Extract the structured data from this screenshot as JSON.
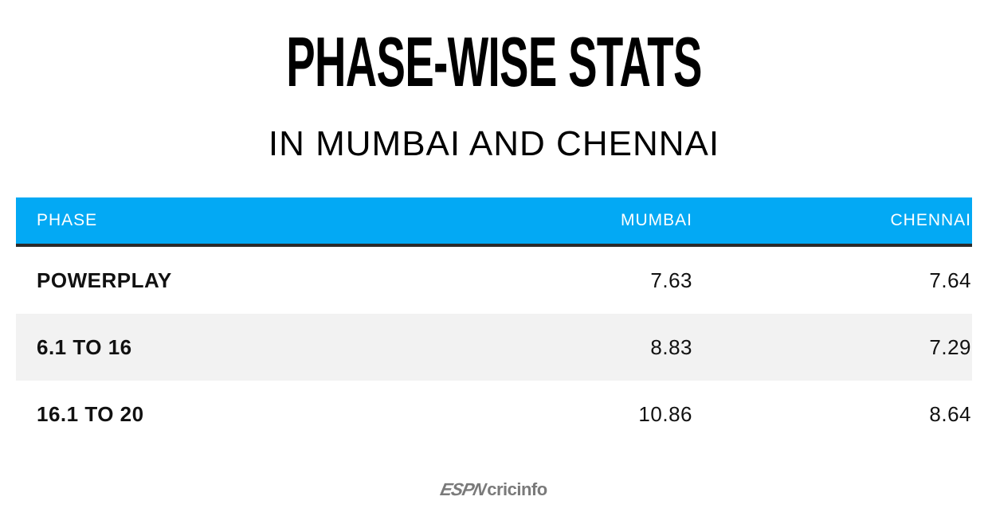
{
  "header": {
    "title": "PHASE-WISE STATS",
    "subtitle": "IN MUMBAI AND CHENNAI"
  },
  "table": {
    "columns": [
      "PHASE",
      "MUMBAI",
      "CHENNAI"
    ],
    "rows": [
      {
        "phase": "POWERPLAY",
        "mumbai": "7.63",
        "chennai": "7.64"
      },
      {
        "phase": "6.1 TO 16",
        "mumbai": "8.83",
        "chennai": "7.29"
      },
      {
        "phase": "16.1 TO 20",
        "mumbai": "10.86",
        "chennai": "8.64"
      }
    ]
  },
  "footer": {
    "logo_espn": "ESPN",
    "logo_cricinfo": "cricinfo"
  },
  "colors": {
    "header_bg": "#03a9f4",
    "header_rule": "#2b2b2b",
    "alt_row_bg": "#f2f2f2",
    "logo_gray": "#7a7a7a"
  },
  "chart_data": {
    "type": "table",
    "title": "PHASE-WISE STATS",
    "subtitle": "IN MUMBAI AND CHENNAI",
    "columns": [
      "PHASE",
      "MUMBAI",
      "CHENNAI"
    ],
    "categories": [
      "POWERPLAY",
      "6.1 TO 16",
      "16.1 TO 20"
    ],
    "series": [
      {
        "name": "MUMBAI",
        "values": [
          7.63,
          8.83,
          10.86
        ]
      },
      {
        "name": "CHENNAI",
        "values": [
          7.64,
          7.29,
          8.64
        ]
      }
    ]
  }
}
